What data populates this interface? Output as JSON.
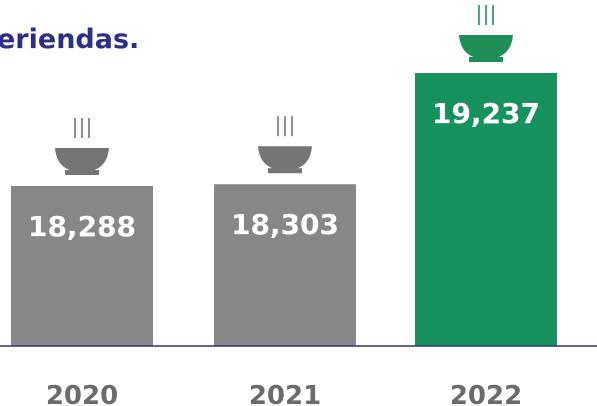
{
  "chart_data": {
    "type": "bar",
    "title": "",
    "subtitle": "eriendas.",
    "xlabel": "",
    "ylabel": "",
    "categories": [
      "2020",
      "2021",
      "2022"
    ],
    "values": [
      18288,
      18303,
      19237
    ],
    "value_labels": [
      "18,288",
      "18,303",
      "19,237"
    ],
    "ylim": [
      0,
      19237
    ],
    "grid": false,
    "legend": "none",
    "bar_colors": [
      "#878787",
      "#878787",
      "#17925f"
    ],
    "icon_colors": [
      "#757575",
      "#757575",
      "#1f8f57"
    ],
    "bar_icon": "steaming-bowl-icon",
    "colors": {
      "subtitle": "#2b2f86",
      "baseline": "#2b2f86",
      "tick_label": "#6b6b6b",
      "value_label": "#ffffff"
    }
  }
}
